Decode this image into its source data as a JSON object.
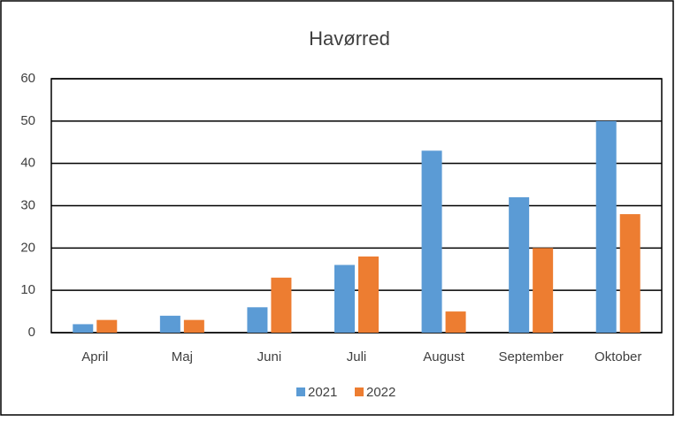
{
  "chart_data": {
    "type": "bar",
    "title": "Havørred",
    "categories": [
      "April",
      "Maj",
      "Juni",
      "Juli",
      "August",
      "September",
      "Oktober"
    ],
    "series": [
      {
        "name": "2021",
        "color": "#5b9bd5",
        "values": [
          2,
          4,
          6,
          16,
          43,
          32,
          50
        ]
      },
      {
        "name": "2022",
        "color": "#ed7d31",
        "values": [
          3,
          3,
          13,
          18,
          5,
          20,
          28
        ]
      }
    ],
    "ylim": [
      0,
      60
    ],
    "yticks": [
      0,
      10,
      20,
      30,
      40,
      50,
      60
    ],
    "grid": true,
    "legend": "bottom"
  }
}
